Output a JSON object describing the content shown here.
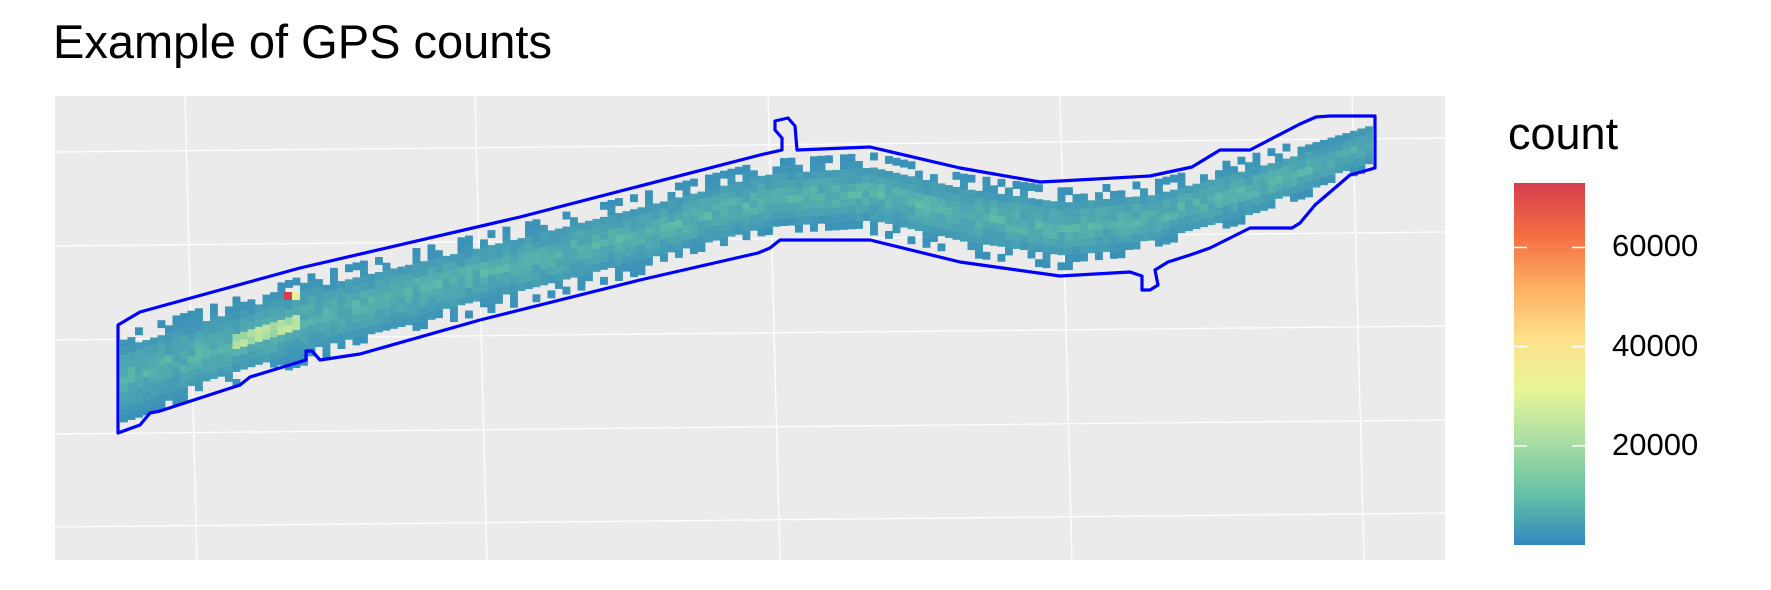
{
  "title": "Example of GPS counts",
  "colors": {
    "panel_background": "#EBEBEB",
    "grid_line": "#FFFFFF",
    "boundary": "#0000FF",
    "scale": [
      "#3288BD",
      "#66C2A5",
      "#ABDDA4",
      "#E6F598",
      "#FEE08B",
      "#FDAE61",
      "#F46D43",
      "#D53E4F"
    ]
  },
  "chart_data": {
    "type": "heatmap",
    "title": "Example of GPS counts",
    "xlabel": "",
    "ylabel": "",
    "axis_ticks_shown": false,
    "grid": true,
    "legend": {
      "title": "count",
      "placement": "right",
      "type": "continuous colorbar",
      "breaks": [
        20000,
        40000,
        60000
      ],
      "labels": [
        "20000",
        "40000",
        "60000"
      ],
      "range": [
        0,
        73000
      ],
      "palette": "Spectral (reversed)"
    },
    "series": [
      {
        "kind": "binned GPS point counts along a road corridor",
        "typical_count": 5000,
        "max_count": 73000,
        "hotspot": "single highest-count cell near the left end of the corridor"
      },
      {
        "kind": "corridor boundary polygon",
        "color": "#0000FF"
      }
    ]
  }
}
